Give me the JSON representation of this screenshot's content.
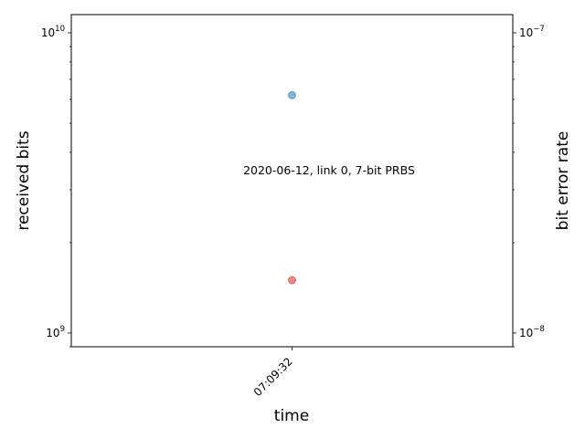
{
  "chart_data": {
    "type": "scatter",
    "xlabel": "time",
    "ylabel_left": "received bits",
    "ylabel_right": "bit error rate",
    "annotation": "2020-06-12, link 0, 7-bit PRBS",
    "x_tick_labels": [
      "07:09:32"
    ],
    "left_axis": {
      "scale": "log",
      "ylim": [
        900000000,
        11500000000
      ],
      "major_ticks": [
        {
          "value": 1000000000,
          "mantissa": "10",
          "exponent": "9"
        },
        {
          "value": 10000000000,
          "mantissa": "10",
          "exponent": "10"
        }
      ]
    },
    "right_axis": {
      "scale": "log",
      "ylim": [
        9e-09,
        1.15e-07
      ],
      "major_ticks": [
        {
          "value": 1e-08,
          "mantissa": "10",
          "exponent": "−8"
        },
        {
          "value": 1e-07,
          "mantissa": "10",
          "exponent": "−7"
        }
      ]
    },
    "series": [
      {
        "axis": "left",
        "color": "#1f77b4",
        "x": [
          "07:09:32"
        ],
        "y": [
          6200000000
        ]
      },
      {
        "axis": "right",
        "color": "#d62728",
        "x": [
          "07:09:32"
        ],
        "y": [
          1.5e-08
        ]
      }
    ],
    "grid": false
  }
}
